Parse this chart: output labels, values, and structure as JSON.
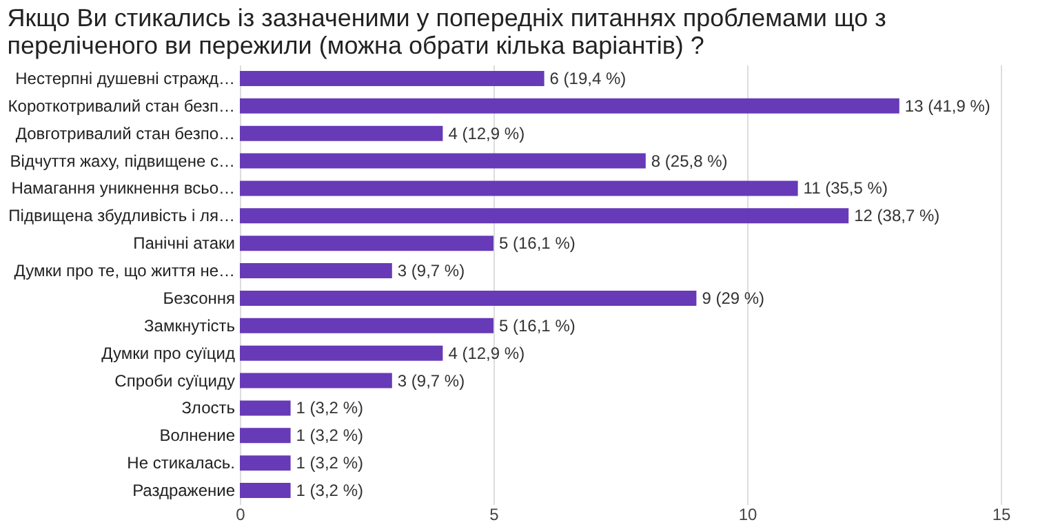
{
  "chart_data": {
    "type": "bar",
    "orientation": "horizontal",
    "title": "Якщо Ви стикались із зазначеними у попередніх питаннях проблемами що з переліченого ви пережили (можна обрати кілька варіантів) ?",
    "categories": [
      "Нестерпні душевні стражд…",
      "Короткотривалий стан безп…",
      "Довготривалий стан безпо…",
      "Відчуття жаху, підвищене с…",
      "Намагання уникнення всьо…",
      "Підвищена збудливість і ля…",
      "Панічні атаки",
      "Думки про те, що життя не…",
      "Безсоння",
      "Замкнутість",
      "Думки про суїцид",
      "Спроби суїциду",
      "Злость",
      "Волнение",
      "Не стикалась.",
      "Раздражение"
    ],
    "values": [
      6,
      13,
      4,
      8,
      11,
      12,
      5,
      3,
      9,
      5,
      4,
      3,
      1,
      1,
      1,
      1
    ],
    "value_labels": [
      "6 (19,4 %)",
      "13 (41,9 %)",
      "4 (12,9 %)",
      "8 (25,8 %)",
      "11 (35,5 %)",
      "12 (38,7 %)",
      "5 (16,1 %)",
      "3 (9,7 %)",
      "9 (29 %)",
      "5 (16,1 %)",
      "4 (12,9 %)",
      "3 (9,7 %)",
      "1 (3,2 %)",
      "1 (3,2 %)",
      "1 (3,2 %)",
      "1 (3,2 %)"
    ],
    "color": "#673ab7",
    "xlim": [
      0,
      15
    ],
    "xticks": [
      0,
      5,
      10,
      15
    ],
    "grid": "x"
  }
}
